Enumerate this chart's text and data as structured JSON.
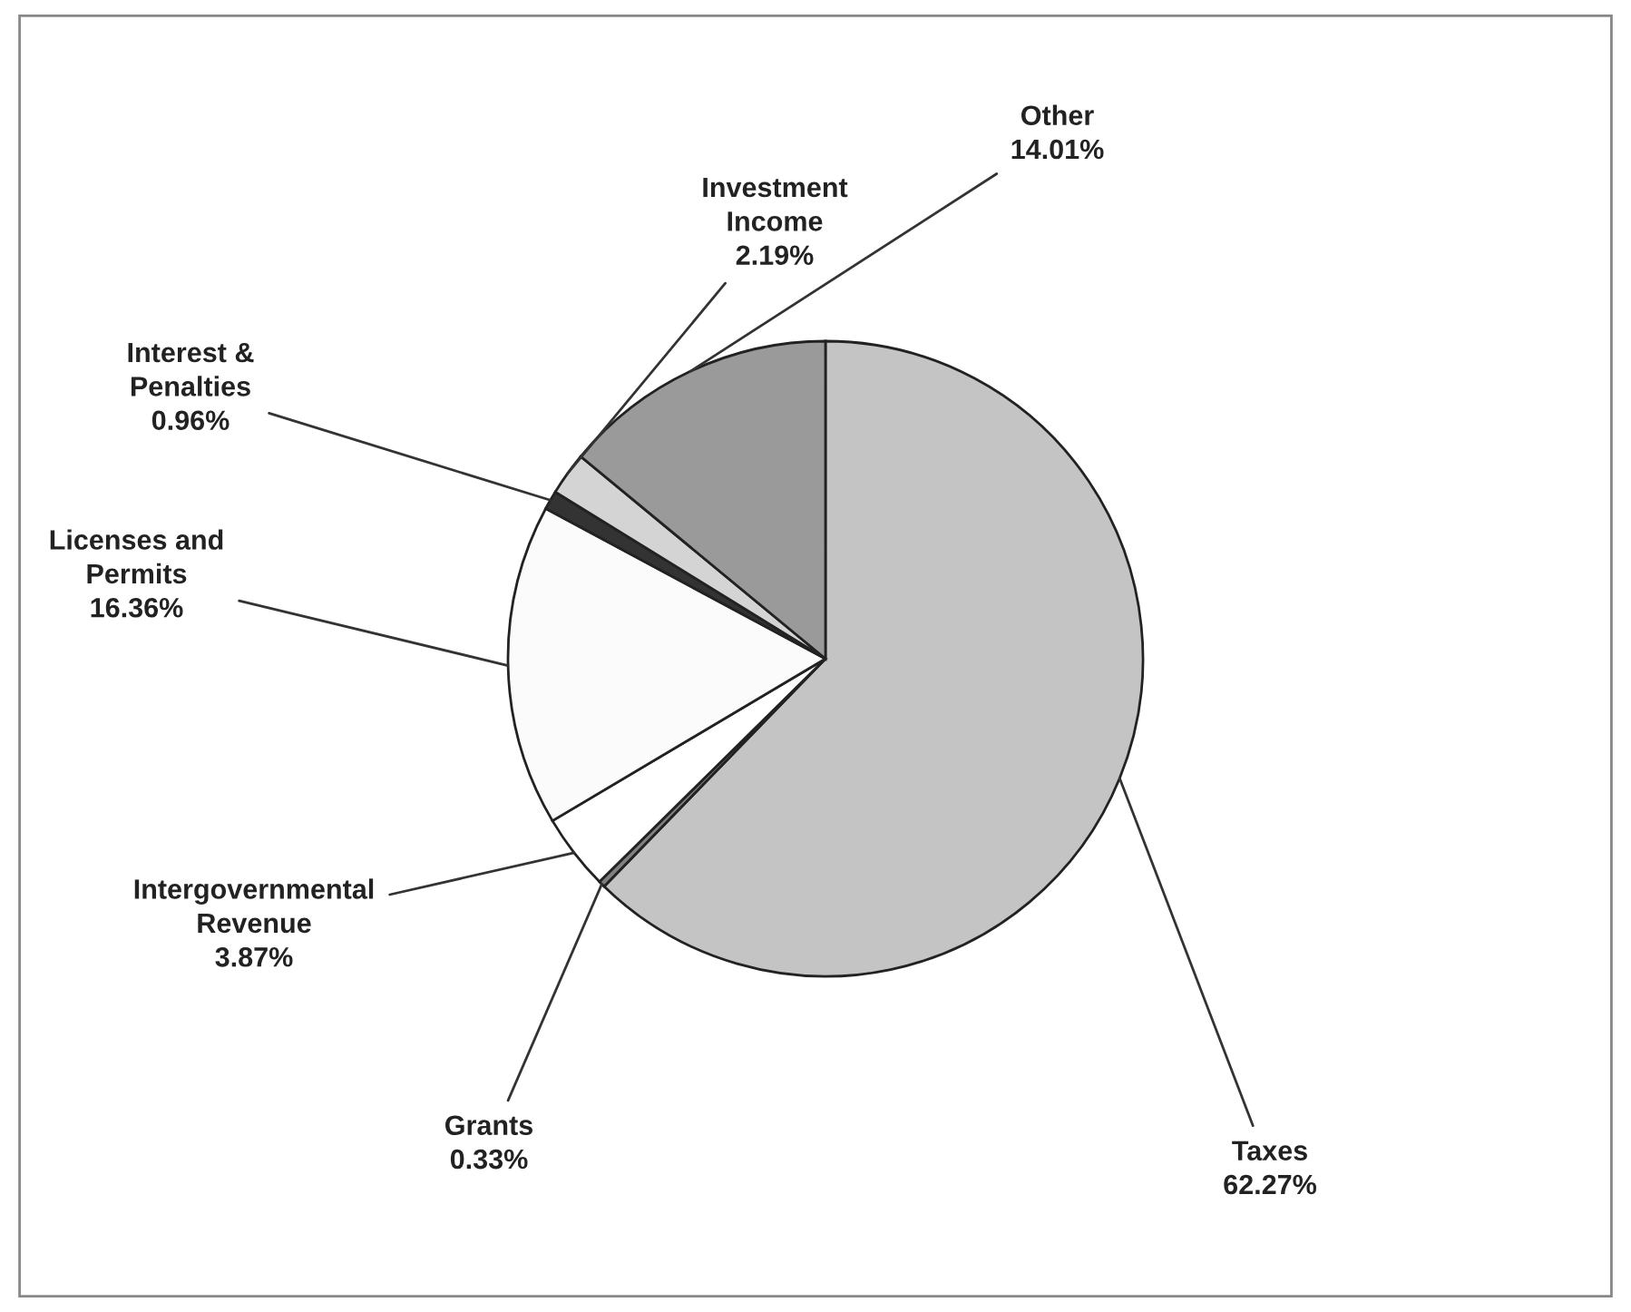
{
  "chart_data": {
    "type": "pie",
    "categories": [
      "Taxes",
      "Grants",
      "Intergovernmental\nRevenue",
      "Licenses and\nPermits",
      "Interest &\nPenalties",
      "Investment\nIncome",
      "Other"
    ],
    "values": [
      62.27,
      0.33,
      3.87,
      16.36,
      0.96,
      2.19,
      14.01
    ],
    "value_labels": [
      "62.27%",
      "0.33%",
      "3.87%",
      "16.36%",
      "0.96%",
      "2.19%",
      "14.01%"
    ],
    "colors": [
      "#c4c4c4",
      "#808080",
      "#ffffff",
      "#fbfbfb",
      "#333333",
      "#d4d4d4",
      "#9a9a9a"
    ],
    "legend": false
  }
}
